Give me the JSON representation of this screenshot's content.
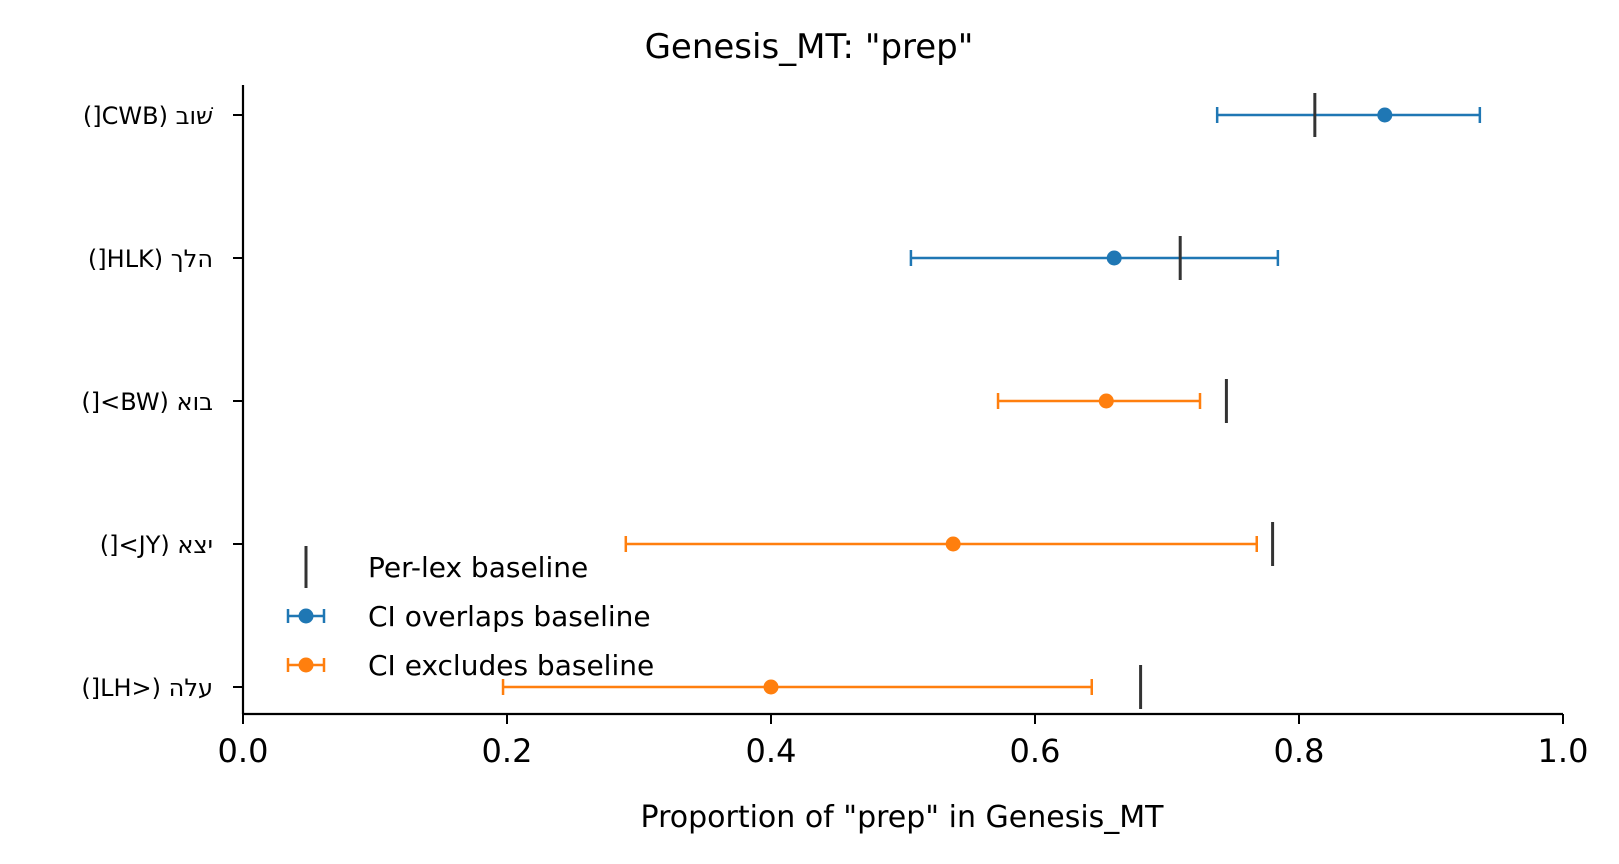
{
  "chart_data": {
    "type": "errorbar",
    "title": "Genesis_MT: \"prep\"",
    "xlabel": "Proportion of \"prep\" in Genesis_MT",
    "ylabel": "",
    "xlim": [
      0.0,
      1.0
    ],
    "xticks": [
      "0.0",
      "0.2",
      "0.4",
      "0.6",
      "0.8",
      "1.0"
    ],
    "categories": [
      "שׁוב (CWB[)",
      "הלך (HLK[)",
      "בוא (BW>[)",
      "יצא (JY>[)",
      "עלה (<LH[)"
    ],
    "points": [
      {
        "label": "שׁוב (CWB[)",
        "value": 0.865,
        "ci_low": 0.738,
        "ci_high": 0.937,
        "baseline": 0.812,
        "group": "CI overlaps baseline"
      },
      {
        "label": "הלך (HLK[)",
        "value": 0.66,
        "ci_low": 0.506,
        "ci_high": 0.784,
        "baseline": 0.71,
        "group": "CI overlaps baseline"
      },
      {
        "label": "בוא (BW>[)",
        "value": 0.654,
        "ci_low": 0.572,
        "ci_high": 0.725,
        "baseline": 0.745,
        "group": "CI excludes baseline"
      },
      {
        "label": "יצא (JY>[)",
        "value": 0.538,
        "ci_low": 0.29,
        "ci_high": 0.768,
        "baseline": 0.78,
        "group": "CI excludes baseline"
      },
      {
        "label": "עלה (<LH[)",
        "value": 0.4,
        "ci_low": 0.197,
        "ci_high": 0.643,
        "baseline": 0.68,
        "group": "CI excludes baseline"
      }
    ],
    "legend": {
      "placement": "lower-left",
      "entries": [
        {
          "name": "Per-lex baseline",
          "kind": "baseline",
          "color": "#333333"
        },
        {
          "name": "CI overlaps baseline",
          "kind": "errorbar",
          "color": "#1f77b4"
        },
        {
          "name": "CI excludes baseline",
          "kind": "errorbar",
          "color": "#ff7f0e"
        }
      ]
    },
    "colors": {
      "overlaps": "#1f77b4",
      "excludes": "#ff7f0e",
      "baseline": "#333333",
      "axis": "#000000"
    },
    "grid": false
  }
}
